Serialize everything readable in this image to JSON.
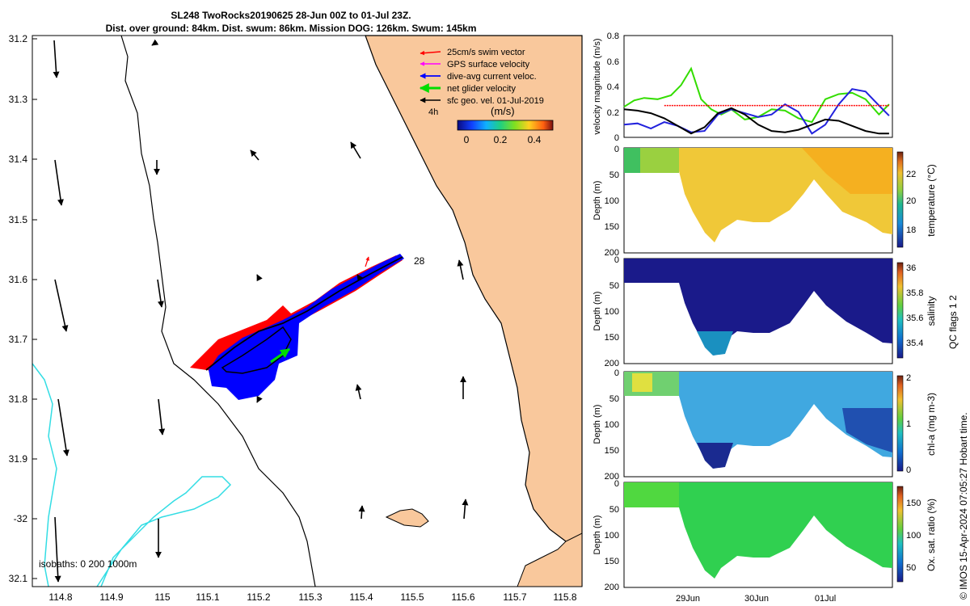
{
  "title": {
    "line1": "SL248 TwoRocks20190625 28-Jun 00Z to 01-Jul 23Z.",
    "line2": "Dist. over ground: 84km. Dist. swum: 86km. Mission DOG: 126km. Swum: 145km"
  },
  "colors": {
    "land": "#f9c89c",
    "coast": "#000000",
    "isobath": "#33dde4",
    "swim": "#ff0000",
    "gps": "#ff00ff",
    "current": "#0000ff",
    "net": "#00dd00",
    "geo": "#000000"
  },
  "map": {
    "lat_ticks": [
      "31.2",
      "31.3",
      "31.4",
      "31.5",
      "31.6",
      "31.7",
      "31.8",
      "31.9",
      "-32",
      "32.1"
    ],
    "lon_ticks": [
      "114.8",
      "114.9",
      "115",
      "115.1",
      "115.2",
      "115.3",
      "115.4",
      "115.5",
      "115.6",
      "115.7",
      "115.8"
    ],
    "legend": [
      {
        "label": "25cm/s swim vector",
        "color": "#ff0000"
      },
      {
        "label": "GPS surface velocity",
        "color": "#ff00ff"
      },
      {
        "label": "dive-avg current veloc.",
        "color": "#0000ff"
      },
      {
        "label": "net glider velocity",
        "color": "#00dd00"
      },
      {
        "label": "sfc geo. vel. 01-Jul-2019",
        "color": "#000000"
      }
    ],
    "time_label": "4h",
    "colorbar_label": "(m/s)",
    "colorbar_ticks": [
      "0",
      "0.2",
      "0.4"
    ],
    "day_label": "28",
    "isobath_label": "isobaths: 0   200  1000m"
  },
  "chart_data": [
    {
      "type": "line",
      "ylabel": "velocity magnitude (m/s)",
      "ylim": [
        0,
        0.8
      ],
      "y_ticks": [
        "0",
        "0.2",
        "0.4",
        "0.6",
        "0.8"
      ],
      "x_range_days": [
        0,
        4
      ],
      "series": [
        {
          "name": "net glider velocity",
          "color": "#33dd00",
          "x": [
            0,
            0.15,
            0.3,
            0.5,
            0.7,
            0.85,
            1.0,
            1.15,
            1.3,
            1.45,
            1.6,
            1.8,
            2.0,
            2.2,
            2.4,
            2.6,
            2.8,
            3.0,
            3.2,
            3.4,
            3.6,
            3.8,
            3.95
          ],
          "y": [
            0.24,
            0.29,
            0.31,
            0.3,
            0.33,
            0.41,
            0.54,
            0.3,
            0.22,
            0.18,
            0.22,
            0.14,
            0.16,
            0.22,
            0.21,
            0.15,
            0.12,
            0.3,
            0.34,
            0.35,
            0.3,
            0.18,
            0.26
          ]
        },
        {
          "name": "dive-avg current veloc.",
          "color": "#2222dd",
          "x": [
            0,
            0.2,
            0.4,
            0.6,
            0.8,
            1.0,
            1.2,
            1.4,
            1.6,
            1.8,
            2.0,
            2.2,
            2.4,
            2.6,
            2.8,
            3.0,
            3.2,
            3.4,
            3.6,
            3.8,
            3.95
          ],
          "y": [
            0.1,
            0.11,
            0.07,
            0.12,
            0.09,
            0.04,
            0.05,
            0.18,
            0.22,
            0.19,
            0.16,
            0.18,
            0.26,
            0.2,
            0.03,
            0.1,
            0.26,
            0.38,
            0.36,
            0.25,
            0.17
          ]
        },
        {
          "name": "sfc geo. vel.",
          "color": "#000000",
          "x": [
            0,
            0.2,
            0.4,
            0.6,
            0.8,
            1.0,
            1.2,
            1.4,
            1.6,
            1.8,
            2.0,
            2.2,
            2.4,
            2.6,
            2.8,
            3.0,
            3.2,
            3.4,
            3.6,
            3.8,
            3.95
          ],
          "y": [
            0.22,
            0.21,
            0.19,
            0.15,
            0.09,
            0.03,
            0.08,
            0.19,
            0.23,
            0.18,
            0.1,
            0.05,
            0.04,
            0.06,
            0.1,
            0.14,
            0.13,
            0.09,
            0.05,
            0.03,
            0.03
          ]
        },
        {
          "name": "25cm/s swim vector",
          "color": "#ff0000",
          "x": [
            0.6,
            3.95
          ],
          "y": [
            0.25,
            0.25
          ]
        }
      ]
    },
    {
      "type": "heatmap",
      "variable": "temperature",
      "colorbar_label": "temperature (°C)",
      "ylabel": "Depth (m)",
      "y_ticks": [
        "0",
        "50",
        "100",
        "150",
        "200"
      ],
      "cbar_ticks": [
        "18",
        "20",
        "22"
      ],
      "clim": [
        17,
        24
      ]
    },
    {
      "type": "heatmap",
      "variable": "salinity",
      "colorbar_label": "salinity",
      "ylabel": "Depth (m)",
      "y_ticks": [
        "0",
        "50",
        "100",
        "150",
        "200"
      ],
      "cbar_ticks": [
        "35.4",
        "35.6",
        "35.8",
        "36"
      ],
      "clim": [
        35.3,
        36.05
      ]
    },
    {
      "type": "heatmap",
      "variable": "chl-a",
      "colorbar_label": "chl-a (mg m-3)",
      "ylabel": "Depth (m)",
      "y_ticks": [
        "0",
        "50",
        "100",
        "150",
        "200"
      ],
      "cbar_ticks": [
        "0",
        "1",
        "2"
      ],
      "clim": [
        0,
        2
      ]
    },
    {
      "type": "heatmap",
      "variable": "oxygen saturation",
      "colorbar_label": "Ox. sat. ratio (%)",
      "ylabel": "Depth (m)",
      "y_ticks": [
        "0",
        "50",
        "100",
        "150",
        "200"
      ],
      "cbar_ticks": [
        "50",
        "100",
        "150"
      ],
      "clim": [
        20,
        175
      ],
      "x_ticks": [
        "29Jun",
        "30Jun",
        "01Jul"
      ]
    }
  ],
  "qc_label": "QC flags 1  2",
  "footer": "© IMOS 15-Apr-2024 07:05:27 Hobart time."
}
